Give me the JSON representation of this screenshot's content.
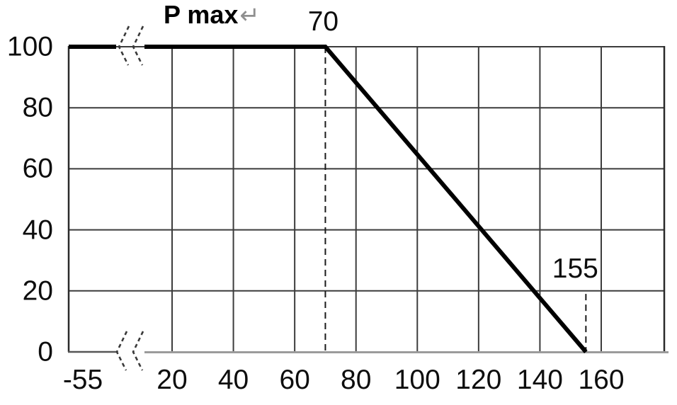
{
  "chart_data": {
    "type": "line",
    "title": {
      "text": "P max",
      "trailing_mark": "↵"
    },
    "xlabel": "",
    "ylabel": "",
    "grid": "on",
    "x_axis_break": {
      "present": true,
      "between": [
        -55,
        20
      ]
    },
    "xlim": [
      -55,
      180
    ],
    "ylim": [
      0,
      100
    ],
    "x_ticks": [
      {
        "value": -55,
        "label": "-55"
      },
      {
        "value": 20,
        "label": "20"
      },
      {
        "value": 40,
        "label": "40"
      },
      {
        "value": 60,
        "label": "60"
      },
      {
        "value": 80,
        "label": "80"
      },
      {
        "value": 100,
        "label": "100"
      },
      {
        "value": 120,
        "label": "120"
      },
      {
        "value": 140,
        "label": "140"
      },
      {
        "value": 160,
        "label": "160"
      }
    ],
    "y_ticks": [
      {
        "value": 0,
        "label": "0"
      },
      {
        "value": 20,
        "label": "20"
      },
      {
        "value": 40,
        "label": "40"
      },
      {
        "value": 60,
        "label": "60"
      },
      {
        "value": 80,
        "label": "80"
      },
      {
        "value": 100,
        "label": "100"
      }
    ],
    "series": [
      {
        "name": "P max",
        "points": [
          {
            "x": -55,
            "y": 100
          },
          {
            "x": 70,
            "y": 100
          },
          {
            "x": 155,
            "y": 0
          }
        ]
      }
    ],
    "annotations": [
      {
        "label": "70",
        "x": 70,
        "guide_top_y": 100,
        "guide_bottom_y": 0
      },
      {
        "label": "155",
        "x": 155,
        "guide_top_y": 19,
        "guide_bottom_y": 0
      }
    ],
    "colors": {
      "series_line": "#000000",
      "grid_line": "#3c3c3c",
      "axis_dark": "#2a2a2a",
      "axis_bottom_gray": "#9b9b9b",
      "dashed_guide": "#1a1a1a",
      "break_marker": "#3a3a3a",
      "text": "#0d0d0d",
      "return_mark": "#8f8f8f"
    }
  }
}
